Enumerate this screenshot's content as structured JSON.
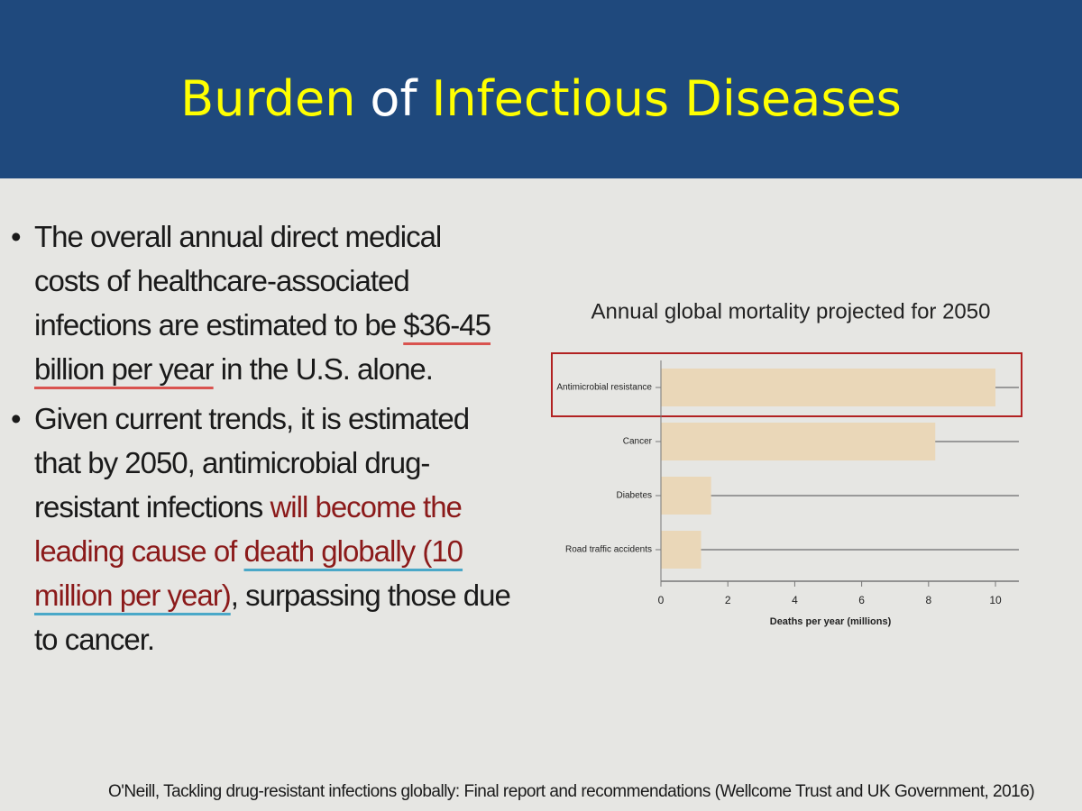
{
  "header": {
    "title_parts": [
      {
        "text": "Burden",
        "color": "#ffff00"
      },
      {
        "text": "of",
        "color": "#ffffff"
      },
      {
        "text": "Infectious Diseases",
        "color": "#ffff00"
      }
    ]
  },
  "bullets": [
    [
      {
        "text": "The overall annual direct medical costs of healthcare-associated infections are estimated to be ",
        "color": "#1a1a1a"
      },
      {
        "text": "$36-45 billion per year",
        "color": "#1a1a1a",
        "underline": "#d9534f"
      },
      {
        "text": " in the U.S. alone.",
        "color": "#1a1a1a"
      }
    ],
    [
      {
        "text": "Given current trends, it is estimated that by 2050, antimicrobial drug-resistant infections ",
        "color": "#1a1a1a"
      },
      {
        "text": "will become the leading cause of ",
        "color": "#8b1a1a"
      },
      {
        "text": "death globally (10 million per year)",
        "color": "#8b1a1a",
        "underline": "#4aa8c8"
      },
      {
        "text": ", surpassing those due to cancer.",
        "color": "#1a1a1a"
      }
    ]
  ],
  "chart_data": {
    "type": "bar",
    "orientation": "horizontal",
    "title": "Annual global mortality projected for 2050",
    "categories": [
      "Antimicrobial resistance",
      "Cancer",
      "Diabetes",
      "Road traffic accidents"
    ],
    "values": [
      10,
      8.2,
      1.5,
      1.2
    ],
    "color": "#ead7b8",
    "xlabel": "Deaths per year (millions)",
    "xlim": [
      0,
      10.7
    ],
    "xticks": [
      0,
      2,
      4,
      6,
      8,
      10
    ]
  },
  "citation": "O'Neill, Tackling drug-resistant infections globally: Final report and recommendations (Wellcome Trust and UK Government, 2016)"
}
